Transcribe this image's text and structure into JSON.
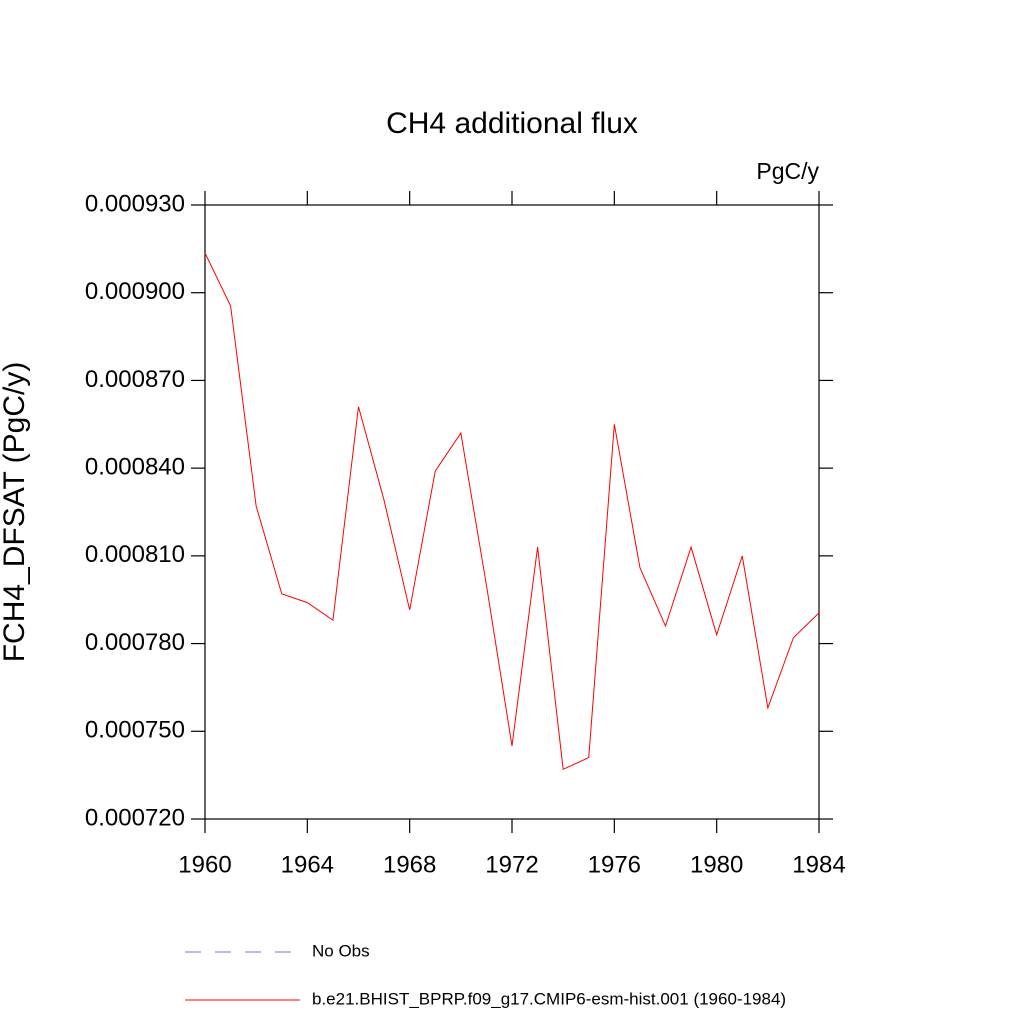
{
  "chart_data": {
    "type": "line",
    "title": "CH4 additional flux",
    "units": "PgC/y",
    "y_label": "FCH4_DFSAT  (PgC/y)",
    "x": [
      1960,
      1961,
      1962,
      1963,
      1964,
      1965,
      1966,
      1967,
      1968,
      1969,
      1970,
      1971,
      1972,
      1973,
      1974,
      1975,
      1976,
      1977,
      1978,
      1979,
      1980,
      1981,
      1982,
      1983,
      1984
    ],
    "series": [
      {
        "name": "b.e21.BHIST_BPRP.f09_g17.CMIP6-esm-hist.001 (1960-1984)",
        "color": "#ff0000",
        "values": [
          0.0009136,
          0.0008955,
          0.000827,
          0.000797,
          0.000794,
          0.000788,
          0.000861,
          0.000829,
          0.0007915,
          0.000839,
          0.000852,
          0.0008,
          0.000745,
          0.000813,
          0.000737,
          0.000741,
          0.000855,
          0.000806,
          0.000786,
          0.000813,
          0.000783,
          0.00081,
          0.000758,
          0.000782,
          0.0007905
        ]
      }
    ],
    "extra_legend": [
      {
        "name": "No Obs",
        "color": "#7a7acc",
        "style": "dashed"
      }
    ],
    "xlim": [
      1960,
      1984
    ],
    "xticks": [
      1960,
      1964,
      1968,
      1972,
      1976,
      1980,
      1984
    ],
    "ylim": [
      0.00072,
      0.00093
    ],
    "yticks": [
      {
        "value": 0.00072,
        "label": "0.000720"
      },
      {
        "value": 0.00075,
        "label": "0.000750"
      },
      {
        "value": 0.00078,
        "label": "0.000780"
      },
      {
        "value": 0.00081,
        "label": "0.000810"
      },
      {
        "value": 0.00084,
        "label": "0.000840"
      },
      {
        "value": 0.00087,
        "label": "0.000870"
      },
      {
        "value": 0.0009,
        "label": "0.000900"
      },
      {
        "value": 0.00093,
        "label": "0.000930"
      }
    ]
  }
}
